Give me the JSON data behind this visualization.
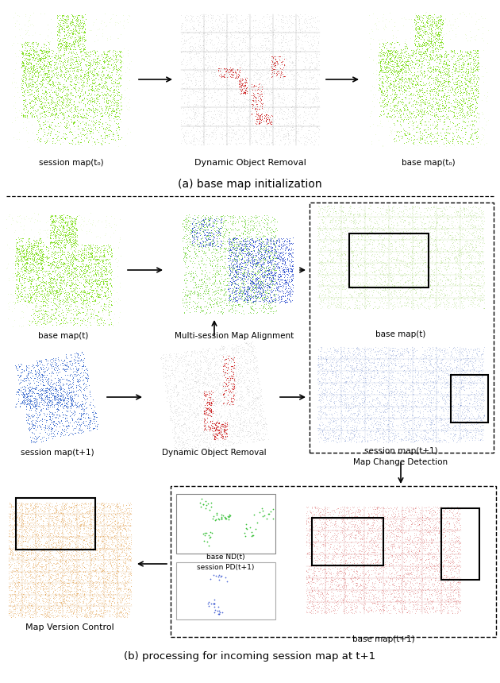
{
  "fig_width": 6.3,
  "fig_height": 8.6,
  "background_color": "#ffffff",
  "section_a_label": "(a) base map initialization",
  "section_b_label": "(b) processing for incoming session map at t+1",
  "panel_labels": {
    "session_map_t0": "session map(t₀)",
    "dynamic_object_removal_a": "Dynamic Object Removal",
    "base_map_t0": "base map(t₀)",
    "base_map_t": "base map(t)",
    "multi_session_alignment": "Multi-session Map Alignment",
    "base_map_t_right": "base map(t)",
    "session_map_t1_left": "session map(t+1)",
    "dynamic_object_removal_b": "Dynamic Object Removal",
    "session_map_t1_right": "session map(t+1)",
    "map_change_detection": "Map Change Detection",
    "map_version_control": "Map Version Control",
    "base_nd_t": "base ND(t)",
    "session_pd_t1": "session PD(t+1)",
    "base_map_t1": "base map(t+1)"
  }
}
